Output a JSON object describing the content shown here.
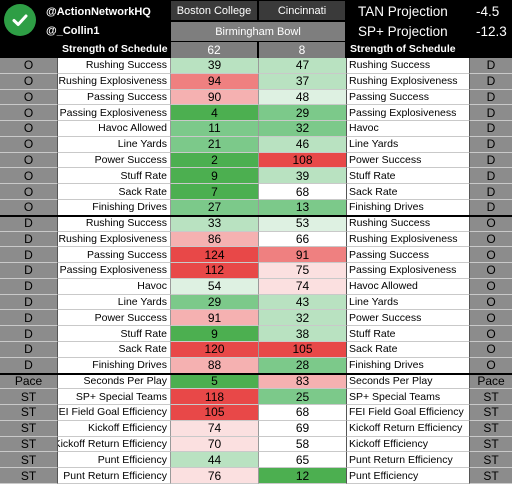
{
  "header": {
    "handle_primary": "@ActionNetworkHQ",
    "handle_secondary": "@_Collin1",
    "team_left": "Boston College",
    "team_right": "Cincinnati",
    "bowl": "Birmingham Bowl",
    "projections": [
      {
        "label": "TAN Projection",
        "value": "-4.5"
      },
      {
        "label": "SP+ Projection",
        "value": "-12.3"
      }
    ],
    "sos_label_left": "Strength of Schedule",
    "sos_label_right": "Strength of Schedule",
    "sos_left": "62",
    "sos_right": "8"
  },
  "colors": {
    "green_dark": "#4caf50",
    "green_mid": "#7cc98a",
    "green_light": "#b9e2c1",
    "green_pale": "#def1e2",
    "white": "#ffffff",
    "red_pale": "#fbe0e0",
    "red_light": "#f5b1b1",
    "red_mid": "#ef8080",
    "red_dark": "#e84848"
  },
  "rows": [
    {
      "ls": "O",
      "label": "Rushing Success",
      "a": "39",
      "ac": "green_light",
      "b": "47",
      "bc": "green_light",
      "rlabel": "Rushing Success",
      "rs": "D"
    },
    {
      "ls": "O",
      "label": "Rushing Explosiveness",
      "a": "94",
      "ac": "red_mid",
      "b": "37",
      "bc": "green_light",
      "rlabel": "Rushing Explosiveness",
      "rs": "D"
    },
    {
      "ls": "O",
      "label": "Passing Success",
      "a": "90",
      "ac": "red_light",
      "b": "48",
      "bc": "green_pale",
      "rlabel": "Passing Success",
      "rs": "D"
    },
    {
      "ls": "O",
      "label": "Passing Explosiveness",
      "a": "4",
      "ac": "green_dark",
      "b": "29",
      "bc": "green_mid",
      "rlabel": "Passing Explosiveness",
      "rs": "D"
    },
    {
      "ls": "O",
      "label": "Havoc Allowed",
      "a": "11",
      "ac": "green_mid",
      "b": "32",
      "bc": "green_mid",
      "rlabel": "Havoc",
      "rs": "D"
    },
    {
      "ls": "O",
      "label": "Line Yards",
      "a": "21",
      "ac": "green_mid",
      "b": "46",
      "bc": "green_light",
      "rlabel": "Line Yards",
      "rs": "D"
    },
    {
      "ls": "O",
      "label": "Power Success",
      "a": "2",
      "ac": "green_dark",
      "b": "108",
      "bc": "red_dark",
      "rlabel": "Power Success",
      "rs": "D"
    },
    {
      "ls": "O",
      "label": "Stuff Rate",
      "a": "9",
      "ac": "green_dark",
      "b": "39",
      "bc": "green_light",
      "rlabel": "Stuff Rate",
      "rs": "D"
    },
    {
      "ls": "O",
      "label": "Sack Rate",
      "a": "7",
      "ac": "green_dark",
      "b": "68",
      "bc": "white",
      "rlabel": "Sack Rate",
      "rs": "D"
    },
    {
      "ls": "O",
      "label": "Finishing Drives",
      "a": "27",
      "ac": "green_mid",
      "b": "13",
      "bc": "green_mid",
      "rlabel": "Finishing Drives",
      "rs": "D"
    },
    {
      "ls": "D",
      "label": "Rushing Success",
      "a": "33",
      "ac": "green_light",
      "b": "53",
      "bc": "green_pale",
      "rlabel": "Rushing Success",
      "rs": "O"
    },
    {
      "ls": "D",
      "label": "Rushing Explosiveness",
      "a": "86",
      "ac": "red_light",
      "b": "66",
      "bc": "white",
      "rlabel": "Rushing Explosiveness",
      "rs": "O"
    },
    {
      "ls": "D",
      "label": "Passing Success",
      "a": "124",
      "ac": "red_dark",
      "b": "91",
      "bc": "red_mid",
      "rlabel": "Passing Success",
      "rs": "O"
    },
    {
      "ls": "D",
      "label": "Passing Explosiveness",
      "a": "112",
      "ac": "red_dark",
      "b": "75",
      "bc": "red_pale",
      "rlabel": "Passing Explosiveness",
      "rs": "O"
    },
    {
      "ls": "D",
      "label": "Havoc",
      "a": "54",
      "ac": "green_pale",
      "b": "74",
      "bc": "red_pale",
      "rlabel": "Havoc Allowed",
      "rs": "O"
    },
    {
      "ls": "D",
      "label": "Line Yards",
      "a": "29",
      "ac": "green_mid",
      "b": "43",
      "bc": "green_light",
      "rlabel": "Line Yards",
      "rs": "O"
    },
    {
      "ls": "D",
      "label": "Power Success",
      "a": "91",
      "ac": "red_light",
      "b": "32",
      "bc": "green_light",
      "rlabel": "Power Success",
      "rs": "O"
    },
    {
      "ls": "D",
      "label": "Stuff Rate",
      "a": "9",
      "ac": "green_dark",
      "b": "38",
      "bc": "green_light",
      "rlabel": "Stuff Rate",
      "rs": "O"
    },
    {
      "ls": "D",
      "label": "Sack Rate",
      "a": "120",
      "ac": "red_dark",
      "b": "105",
      "bc": "red_dark",
      "rlabel": "Sack Rate",
      "rs": "O"
    },
    {
      "ls": "D",
      "label": "Finishing Drives",
      "a": "88",
      "ac": "red_light",
      "b": "28",
      "bc": "green_mid",
      "rlabel": "Finishing Drives",
      "rs": "O"
    },
    {
      "ls": "Pace",
      "label": "Seconds Per Play",
      "a": "5",
      "ac": "green_dark",
      "b": "83",
      "bc": "red_light",
      "rlabel": "Seconds Per Play",
      "rs": "Pace"
    },
    {
      "ls": "ST",
      "label": "SP+ Special Teams",
      "a": "118",
      "ac": "red_dark",
      "b": "25",
      "bc": "green_mid",
      "rlabel": "SP+ Special Teams",
      "rs": "ST"
    },
    {
      "ls": "ST",
      "label": "FEI Field Goal Efficiency",
      "a": "105",
      "ac": "red_dark",
      "b": "68",
      "bc": "white",
      "rlabel": "FEI Field Goal Efficiency",
      "rs": "ST"
    },
    {
      "ls": "ST",
      "label": "Kickoff Efficiency",
      "a": "74",
      "ac": "red_pale",
      "b": "69",
      "bc": "white",
      "rlabel": "Kickoff Return Efficiency",
      "rs": "ST"
    },
    {
      "ls": "ST",
      "label": "Kickoff Return Efficiency",
      "a": "70",
      "ac": "red_pale",
      "b": "58",
      "bc": "white",
      "rlabel": "Kickoff Efficiency",
      "rs": "ST"
    },
    {
      "ls": "ST",
      "label": "Punt Efficiency",
      "a": "44",
      "ac": "green_light",
      "b": "65",
      "bc": "white",
      "rlabel": "Punt Return Efficiency",
      "rs": "ST"
    },
    {
      "ls": "ST",
      "label": "Punt Return Efficiency",
      "a": "76",
      "ac": "red_pale",
      "b": "12",
      "bc": "green_dark",
      "rlabel": "Punt Efficiency",
      "rs": "ST"
    }
  ]
}
